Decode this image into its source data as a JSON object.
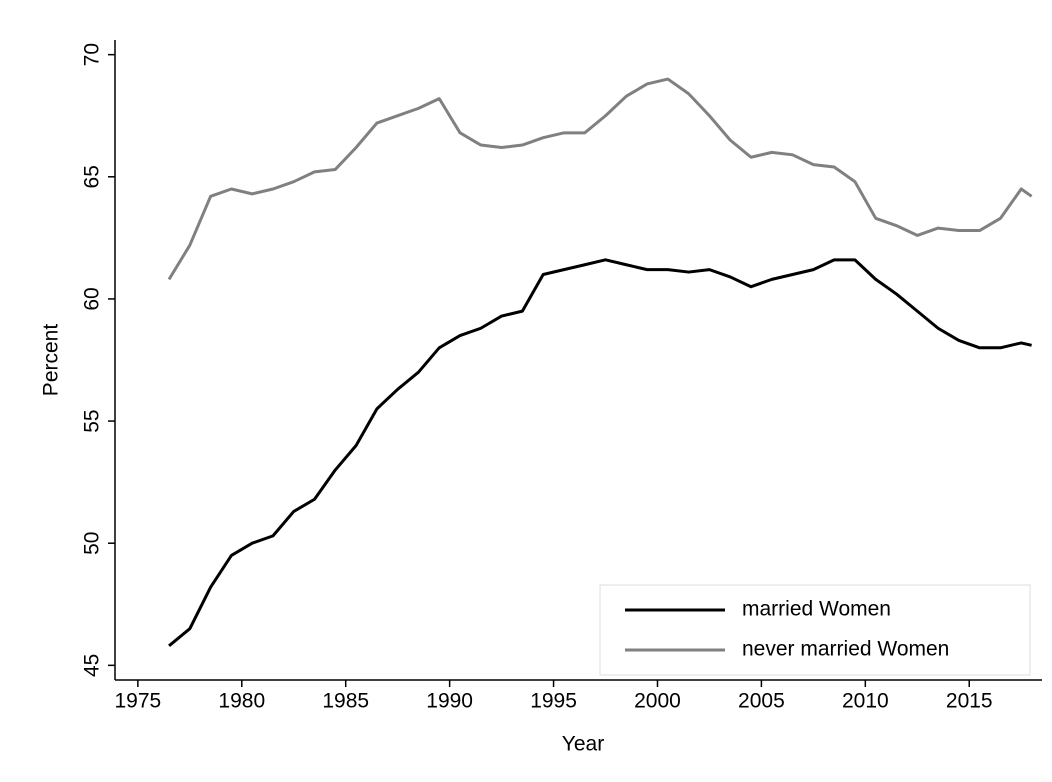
{
  "chart_data": {
    "type": "line",
    "x_label": "Year",
    "y_label": "Percent",
    "x": [
      1976.5,
      1977.5,
      1978.5,
      1979.5,
      1980.5,
      1981.5,
      1982.5,
      1983.5,
      1984.5,
      1985.5,
      1986.5,
      1987.5,
      1988.5,
      1989.5,
      1990.5,
      1991.5,
      1992.5,
      1993.5,
      1994.5,
      1995.5,
      1996.5,
      1997.5,
      1998.5,
      1999.5,
      2000.5,
      2001.5,
      2002.5,
      2003.5,
      2004.5,
      2005.5,
      2006.5,
      2007.5,
      2008.5,
      2009.5,
      2010.5,
      2011.5,
      2012.5,
      2013.5,
      2014.5,
      2015.5,
      2016.5,
      2017.5,
      2018
    ],
    "series": [
      {
        "name": "married Women",
        "color": "#000000",
        "values": [
          45.8,
          46.5,
          48.2,
          49.5,
          50.0,
          50.3,
          51.3,
          51.8,
          53.0,
          54.0,
          55.5,
          56.3,
          57.0,
          58.0,
          58.5,
          58.8,
          59.3,
          59.5,
          61.0,
          61.2,
          61.4,
          61.6,
          61.4,
          61.2,
          61.2,
          61.1,
          61.2,
          60.9,
          60.5,
          60.8,
          61.0,
          61.2,
          61.6,
          61.6,
          60.8,
          60.2,
          59.5,
          58.8,
          58.3,
          58.0,
          58.0,
          58.2,
          58.1
        ]
      },
      {
        "name": "never married Women",
        "color": "#808080",
        "values": [
          60.8,
          62.2,
          64.2,
          64.5,
          64.3,
          64.5,
          64.8,
          65.2,
          65.3,
          66.2,
          67.2,
          67.5,
          67.8,
          68.2,
          66.8,
          66.3,
          66.2,
          66.3,
          66.6,
          66.8,
          66.8,
          67.5,
          68.3,
          68.8,
          69.0,
          68.4,
          67.5,
          66.5,
          65.8,
          66.0,
          65.9,
          65.5,
          65.4,
          64.8,
          63.3,
          63.0,
          62.6,
          62.9,
          62.8,
          62.8,
          63.3,
          64.5,
          64.2
        ]
      }
    ],
    "xlim": [
      1973.9,
      2018.5
    ],
    "xticks": [
      1975,
      1980,
      1985,
      1990,
      1995,
      2000,
      2005,
      2010,
      2015
    ],
    "ylim": [
      44.4,
      70.6
    ],
    "yticks": [
      45,
      50,
      55,
      60,
      65,
      70
    ],
    "legend": "lower right"
  }
}
